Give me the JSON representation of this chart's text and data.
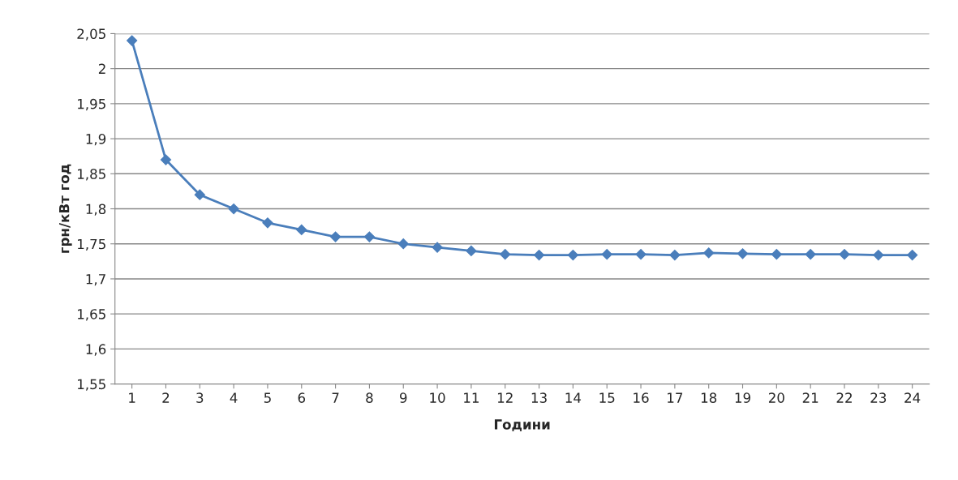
{
  "chart_data": {
    "type": "line",
    "xlabel": "Години",
    "ylabel": "грн/кВт год",
    "categories": [
      "1",
      "2",
      "3",
      "4",
      "5",
      "6",
      "7",
      "8",
      "9",
      "10",
      "11",
      "12",
      "13",
      "14",
      "15",
      "16",
      "17",
      "18",
      "19",
      "20",
      "21",
      "22",
      "23",
      "24"
    ],
    "series": [
      {
        "color": "#4a7ebb",
        "values": [
          2.04,
          1.87,
          1.82,
          1.8,
          1.78,
          1.77,
          1.76,
          1.76,
          1.75,
          1.745,
          1.74,
          1.735,
          1.734,
          1.734,
          1.735,
          1.735,
          1.734,
          1.737,
          1.736,
          1.735,
          1.735,
          1.735,
          1.734,
          1.734
        ]
      }
    ],
    "ylim": [
      1.55,
      2.05
    ],
    "yticks": [
      {
        "value": 1.55,
        "label": "1,55"
      },
      {
        "value": 1.6,
        "label": "1,6"
      },
      {
        "value": 1.65,
        "label": "1,65"
      },
      {
        "value": 1.7,
        "label": "1,7"
      },
      {
        "value": 1.75,
        "label": "1,75"
      },
      {
        "value": 1.8,
        "label": "1,8"
      },
      {
        "value": 1.85,
        "label": "1,85"
      },
      {
        "value": 1.9,
        "label": "1,9"
      },
      {
        "value": 1.95,
        "label": "1,95"
      },
      {
        "value": 2,
        "label": "2"
      },
      {
        "value": 2.05,
        "label": "2,05"
      }
    ],
    "grid": "y",
    "marker": "diamond",
    "line_style": "solid",
    "legend": false
  }
}
